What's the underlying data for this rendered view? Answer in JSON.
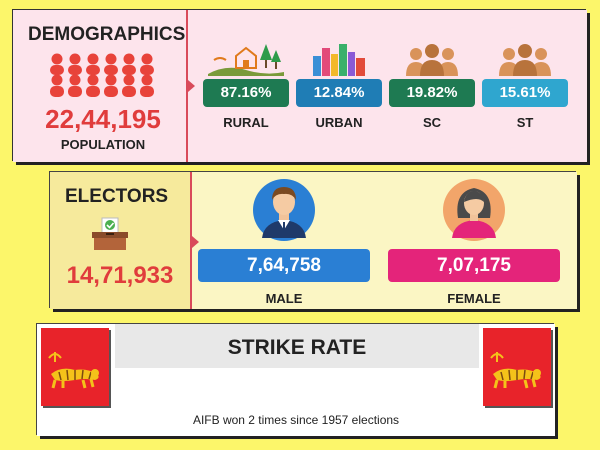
{
  "demographics": {
    "title": "DEMOGRAPHICS",
    "population_value": "22,44,195",
    "population_label": "POPULATION",
    "stats": [
      {
        "value": "87.16%",
        "label": "RURAL",
        "color": "#1e7a52"
      },
      {
        "value": "12.84%",
        "label": "URBAN",
        "color": "#1f7db5"
      },
      {
        "value": "19.82%",
        "label": "SC",
        "color": "#1e7a52"
      },
      {
        "value": "15.61%",
        "label": "ST",
        "color": "#2fa6cf"
      }
    ]
  },
  "electors": {
    "title": "ELECTORS",
    "total": "14,71,933",
    "male_value": "7,64,758",
    "male_label": "MALE",
    "male_color": "#2a7fd4",
    "female_value": "7,07,175",
    "female_label": "FEMALE",
    "female_color": "#e4247a"
  },
  "strike_rate": {
    "title": "STRIKE RATE",
    "note": "AIFB won 2 times since 1957 elections"
  },
  "colors": {
    "accent_red": "#e03c3c",
    "flag_red": "#e8232a",
    "tiger": "#f4c21a"
  }
}
